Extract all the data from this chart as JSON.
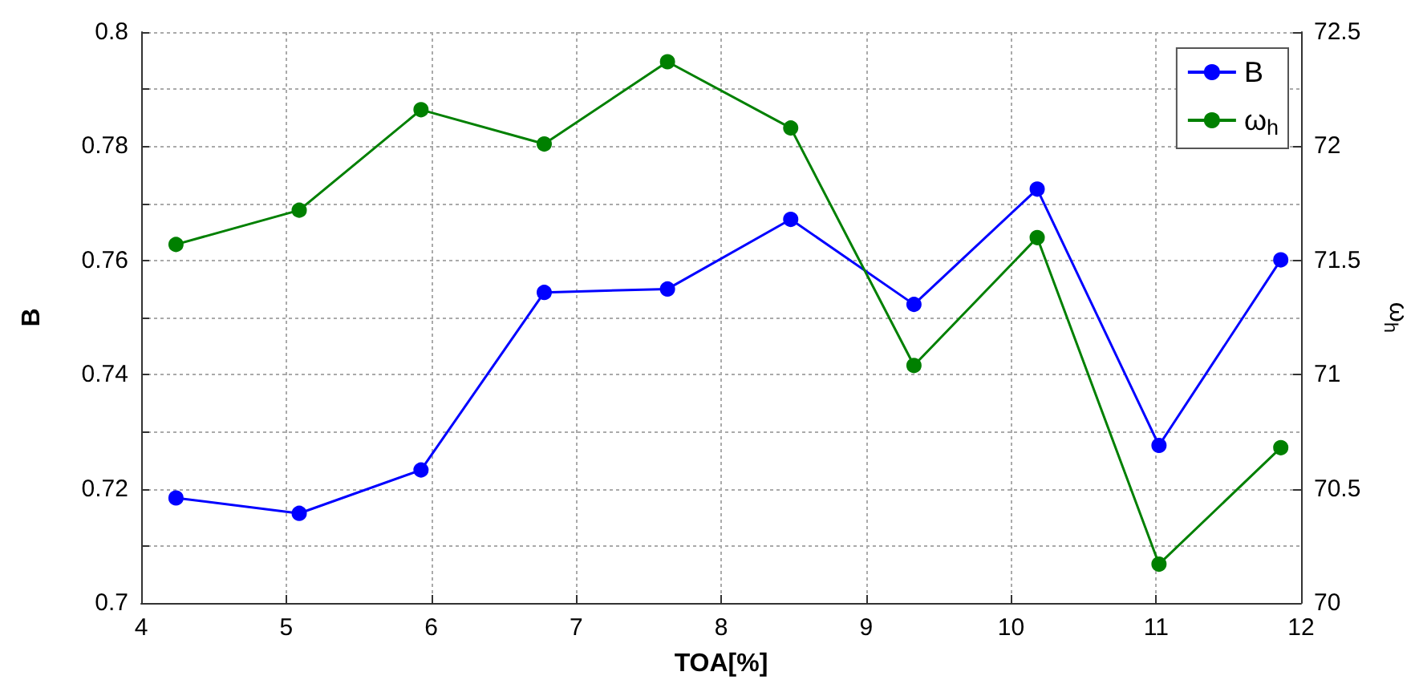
{
  "chart_data": {
    "type": "line",
    "xlabel": "TOA[%]",
    "ylabel": "B",
    "y2label": "ω$_{h}$",
    "x": [
      4.24,
      5.09,
      5.93,
      6.78,
      7.63,
      8.48,
      9.33,
      10.18,
      11.02,
      11.86
    ],
    "series": [
      {
        "name": "B",
        "color": "#0000ff",
        "values": [
          0.7184,
          0.7157,
          0.7233,
          0.7544,
          0.755,
          0.7672,
          0.7523,
          0.7725,
          0.7276,
          0.7601
        ]
      },
      {
        "name": "ω$_{h}$",
        "color": "#008000",
        "axis": "y2",
        "values": [
          71.57,
          71.72,
          72.16,
          72.01,
          72.37,
          72.08,
          71.04,
          71.6,
          70.17,
          70.68
        ]
      }
    ],
    "xlim": [
      4,
      12
    ],
    "xticks": [
      4,
      5,
      6,
      7,
      8,
      9,
      10,
      11,
      12
    ],
    "ylim": [
      0.7,
      0.8
    ],
    "yticks": [
      0.7,
      {
        "value": 0.71,
        "label": null
      },
      0.72,
      {
        "value": 0.73,
        "label": null
      },
      0.74,
      {
        "value": 0.75,
        "label": null
      },
      0.76,
      {
        "value": 0.77,
        "label": null
      },
      0.78,
      {
        "value": 0.79,
        "label": null
      },
      0.8
    ],
    "y2lim": [
      70,
      72.5
    ],
    "y2ticks": [
      70,
      70.5,
      71,
      71.5,
      72,
      72.5
    ],
    "grid": true,
    "legend": "top right",
    "marker": "circle",
    "line_style": "solid"
  }
}
